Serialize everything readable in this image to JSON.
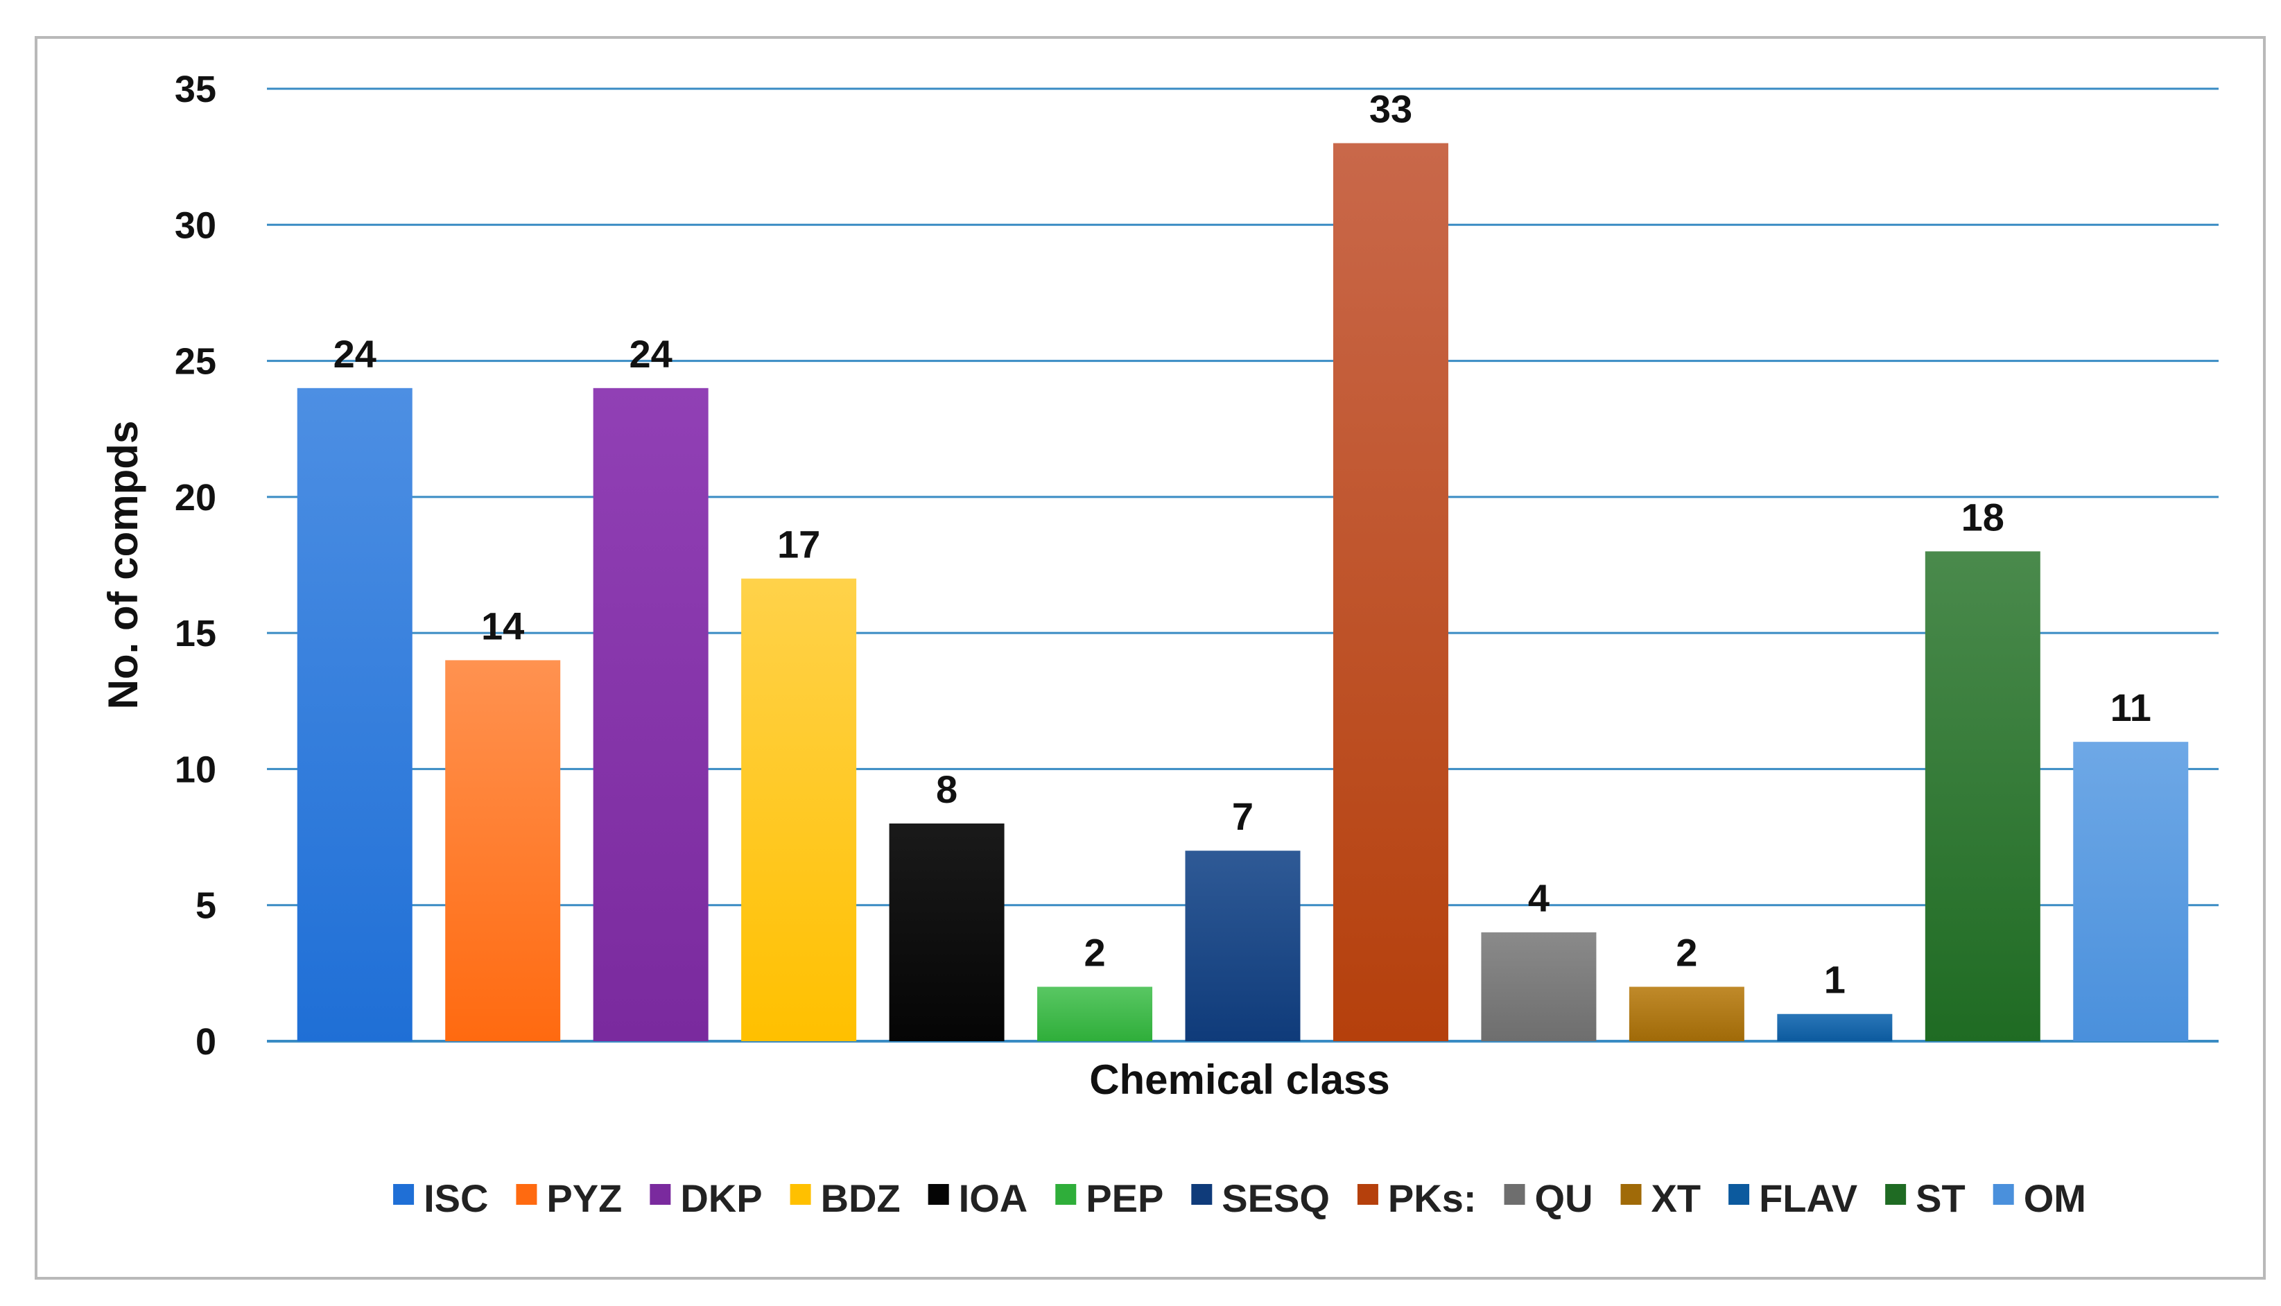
{
  "chart_data": {
    "type": "bar",
    "title": "",
    "xlabel": "Chemical class",
    "ylabel": "No. of compds",
    "ylim": [
      0,
      35
    ],
    "yticks": [
      0,
      5,
      10,
      15,
      20,
      25,
      30,
      35
    ],
    "grid": true,
    "legend_position": "bottom",
    "series": [
      {
        "name": "ISC",
        "value": 24,
        "color": "#1f6fd6",
        "color_top": "#4d8fe3"
      },
      {
        "name": "PYZ",
        "value": 14,
        "color": "#ff6a10",
        "color_top": "#ff9250"
      },
      {
        "name": "DKP",
        "value": 24,
        "color": "#7a2a9e",
        "color_top": "#9140b5"
      },
      {
        "name": "BDZ",
        "value": 17,
        "color": "#ffc000",
        "color_top": "#ffd24a"
      },
      {
        "name": "IOA",
        "value": 8,
        "color": "#050505",
        "color_top": "#1a1a1a"
      },
      {
        "name": "PEP",
        "value": 2,
        "color": "#2fae3a",
        "color_top": "#59c763"
      },
      {
        "name": "SESQ",
        "value": 7,
        "color": "#0f3b7a",
        "color_top": "#2f5a96"
      },
      {
        "name": "PKs:",
        "value": 33,
        "color": "#b5400c",
        "color_top": "#c9684a"
      },
      {
        "name": "QU",
        "value": 4,
        "color": "#6e6e6e",
        "color_top": "#8a8a8a"
      },
      {
        "name": "XT",
        "value": 2,
        "color": "#a06a08",
        "color_top": "#c08a2a"
      },
      {
        "name": "FLAV",
        "value": 1,
        "color": "#0c5a9e",
        "color_top": "#2a76b8"
      },
      {
        "name": "ST",
        "value": 18,
        "color": "#1f6b23",
        "color_top": "#4a8a4c"
      },
      {
        "name": "OM",
        "value": 11,
        "color": "#4a90dc",
        "color_top": "#6ea8e6"
      }
    ],
    "colors": {
      "gridline": "#3a8cc4",
      "axis": "#3a8cc4",
      "frame": "#b9b9b9"
    }
  }
}
